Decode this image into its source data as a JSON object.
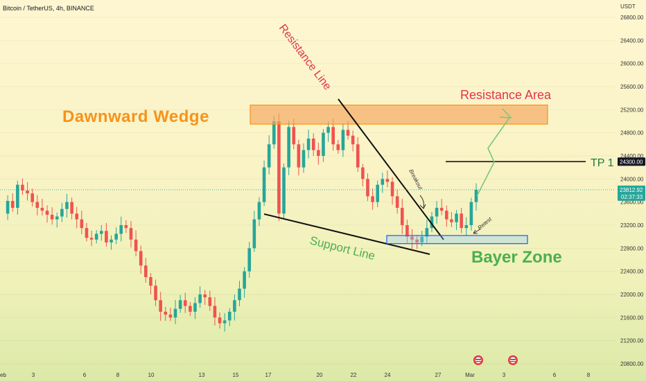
{
  "header": {
    "symbol_line": "Bitcoin / TetherUS, 4h, BINANCE",
    "quote_currency": "USDT"
  },
  "price_axis": {
    "labels": [
      "26800.00",
      "26400.00",
      "26000.00",
      "25600.00",
      "25200.00",
      "24800.00",
      "24400.00",
      "24000.00",
      "23600.00",
      "23200.00",
      "22800.00",
      "22400.00",
      "22000.00",
      "21600.00",
      "21200.00",
      "20800.00"
    ],
    "tags": [
      {
        "value": 24300,
        "label": "24300.00",
        "style": "dark"
      },
      {
        "value": 23812.92,
        "label": "23812.92",
        "sub": "02:37:33",
        "style": "green"
      }
    ]
  },
  "time_axis": {
    "labels": [
      "eb",
      "3",
      "6",
      "8",
      "10",
      "13",
      "15",
      "17",
      "20",
      "22",
      "24",
      "27",
      "Mar",
      "3",
      "6",
      "8"
    ]
  },
  "annotations": {
    "wedge_title": "Dawnward Wedge",
    "resistance_line": "Resistance Line",
    "resistance_area": "Resistance Area",
    "support_line": "Support Line",
    "bayer_zone": "Bayer Zone",
    "tp1": "TP 1",
    "breakout": "Breakout",
    "retest": "Retest"
  },
  "chart_data": {
    "type": "candlestick",
    "title": "Bitcoin / TetherUS, 4h, BINANCE",
    "y_unit": "USDT",
    "ylim": [
      20700,
      27000
    ],
    "x_ticks": [
      "eb",
      "3",
      "6",
      "8",
      "10",
      "13",
      "15",
      "17",
      "20",
      "22",
      "24",
      "27",
      "Mar",
      "3",
      "6",
      "8"
    ],
    "current_price": 23812.92,
    "tp1_level": 24300,
    "resistance_area": [
      24950,
      25280
    ],
    "bayer_zone": [
      22880,
      23020
    ],
    "colors": {
      "up": "#26a69a",
      "down": "#ef5350",
      "wedge": "#f7931a",
      "resistance_text": "#e0344c",
      "support_text": "#4caf50",
      "zone_border": "#2962ff"
    },
    "close_path": [
      23400,
      23620,
      23500,
      23900,
      23800,
      23750,
      23600,
      23500,
      23450,
      23380,
      23300,
      23350,
      23480,
      23600,
      23400,
      23300,
      23150,
      22980,
      22950,
      23050,
      23100,
      22900,
      22950,
      23050,
      23200,
      23150,
      22950,
      22750,
      22500,
      22300,
      22150,
      21900,
      21700,
      21650,
      21600,
      21750,
      21900,
      21800,
      21700,
      21850,
      22000,
      21950,
      21800,
      21600,
      21500,
      21550,
      21700,
      21900,
      22100,
      22400,
      22800,
      23300,
      23600,
      24200,
      24600,
      25000,
      23400,
      24200,
      24900,
      24600,
      24200,
      24500,
      24700,
      24500,
      24400,
      24800,
      24900,
      24600,
      24500,
      24850,
      24750,
      24600,
      24200,
      24000,
      23700,
      23600,
      23900,
      24000,
      23950,
      23700,
      23500,
      23200,
      23000,
      22950,
      22900,
      23000,
      23150,
      23350,
      23500,
      23450,
      23300,
      23250,
      23400,
      23150,
      23200,
      23600,
      23812.92
    ]
  }
}
